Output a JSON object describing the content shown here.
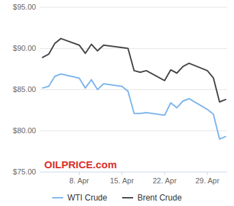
{
  "chart_data": {
    "type": "line",
    "x": [
      2,
      3,
      4,
      5,
      8,
      9,
      10,
      11,
      12,
      15,
      16,
      17,
      18,
      19,
      22,
      23,
      24,
      25,
      26,
      29,
      30,
      31,
      32
    ],
    "series": [
      {
        "name": "WTI Crude",
        "color": "#7cb5ec",
        "values": [
          85.2,
          85.4,
          86.6,
          86.9,
          86.4,
          85.2,
          86.2,
          85.0,
          85.7,
          85.4,
          84.8,
          82.1,
          82.1,
          82.2,
          81.9,
          83.4,
          82.8,
          83.6,
          83.9,
          82.6,
          82.0,
          79.0,
          79.3
        ]
      },
      {
        "name": "Brent Crude",
        "color": "#434348",
        "values": [
          88.9,
          89.3,
          90.6,
          91.2,
          90.4,
          89.4,
          90.5,
          89.7,
          90.4,
          90.1,
          90.0,
          87.3,
          87.1,
          87.3,
          86.1,
          87.4,
          87.0,
          87.8,
          88.2,
          87.3,
          86.4,
          83.5,
          83.8
        ]
      }
    ],
    "xlim": [
      1.6,
      32.3
    ],
    "xticks": [
      {
        "value": 8,
        "label": "8. Apr"
      },
      {
        "value": 15,
        "label": "15. Apr"
      },
      {
        "value": 22,
        "label": "22. Apr"
      },
      {
        "value": 29,
        "label": "29. Apr"
      }
    ],
    "ylim": [
      75,
      95
    ],
    "yticks": [
      {
        "value": 75,
        "label": "$75.00"
      },
      {
        "value": 80,
        "label": "$80.00"
      },
      {
        "value": 85,
        "label": "$85.00"
      },
      {
        "value": 90,
        "label": "$90.00"
      },
      {
        "value": 95,
        "label": "$95.00"
      }
    ],
    "grid": true,
    "legend": "bottom",
    "annotations": [
      "OILPRICE.com"
    ]
  }
}
